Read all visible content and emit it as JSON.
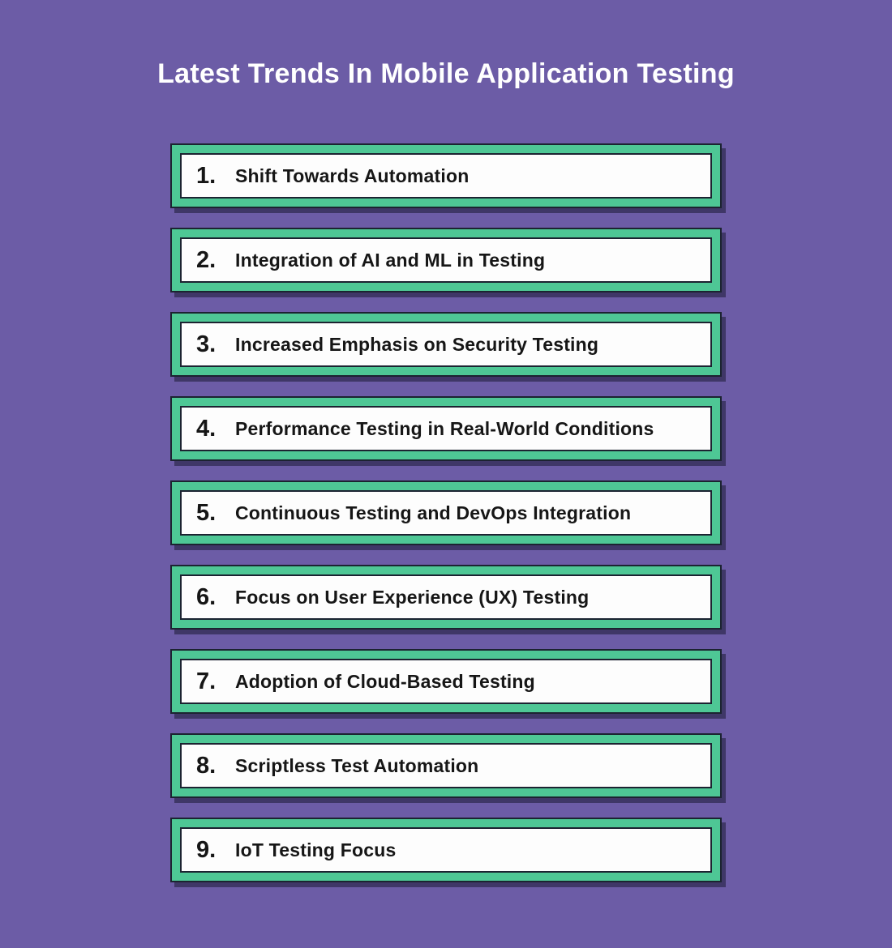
{
  "page": {
    "title": "Latest Trends In Mobile Application Testing"
  },
  "colors": {
    "background": "#6c5ca6",
    "box_band": "#4ec795",
    "box_border": "#1c2331",
    "box_fill": "#fdfdfd",
    "title_text": "#ffffff",
    "item_text": "#161616",
    "shadow": "rgba(18, 18, 40, 0.5)"
  },
  "trends": [
    {
      "number": "1.",
      "label": "Shift Towards Automation"
    },
    {
      "number": "2.",
      "label": "Integration of AI and ML in Testing"
    },
    {
      "number": "3.",
      "label": "Increased Emphasis on Security Testing"
    },
    {
      "number": "4.",
      "label": "Performance Testing in Real-World Conditions"
    },
    {
      "number": "5.",
      "label": "Continuous Testing and DevOps Integration"
    },
    {
      "number": "6.",
      "label": "Focus on User Experience (UX) Testing"
    },
    {
      "number": "7.",
      "label": "Adoption of Cloud-Based Testing"
    },
    {
      "number": "8.",
      "label": "Scriptless Test Automation"
    },
    {
      "number": "9.",
      "label": "IoT Testing Focus"
    }
  ]
}
